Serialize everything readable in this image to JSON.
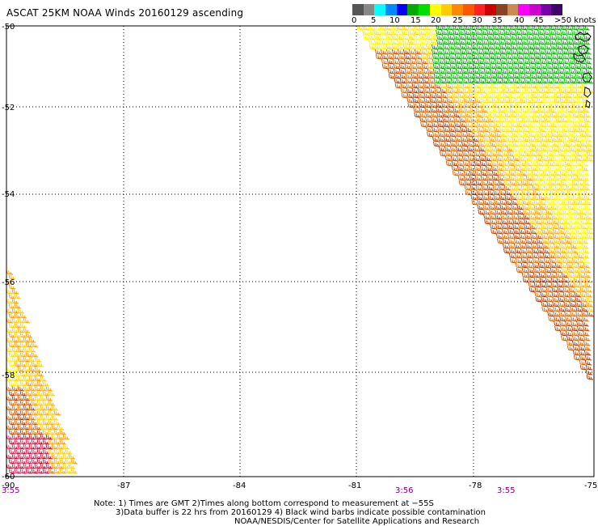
{
  "header": {
    "title": "ASCAT 25KM NOAA Winds 20160129 ascending"
  },
  "scale": {
    "colors": [
      "#555555",
      "#888888",
      "#00ffff",
      "#0088ff",
      "#0000ff",
      "#00aa00",
      "#00dd00",
      "#ffff00",
      "#ffcc00",
      "#ff8800",
      "#ff5500",
      "#ff2222",
      "#cc0000",
      "#884422",
      "#cc8855",
      "#ff00ff",
      "#cc00cc",
      "#7700aa",
      "#440066"
    ],
    "labels": [
      "0",
      "5",
      "10",
      "15",
      "20",
      "25",
      "30",
      "35",
      "40",
      "45",
      ">50 knots"
    ]
  },
  "map": {
    "lon_ticks": [
      "-87",
      "-84",
      "-81",
      "-78",
      "-75"
    ],
    "lon_left_label": "-90",
    "lat_ticks": [
      "-50",
      "-52",
      "-54",
      "-56",
      "-58",
      "-60"
    ],
    "time_labels": [
      "3:55",
      "3:56",
      "3:55"
    ],
    "border_color": "#000000",
    "grid_style": "dotted"
  },
  "notes": {
    "line1": "Note: 1) Times are GMT 2)Times along bottom correspond to measurement at −55S",
    "line2": "3)Data buffer is 22 hrs from 20160129 4) Black wind barbs indicate possible contamination",
    "line3": "NOAA/NESDIS/Center for Satellite Applications and Research"
  }
}
